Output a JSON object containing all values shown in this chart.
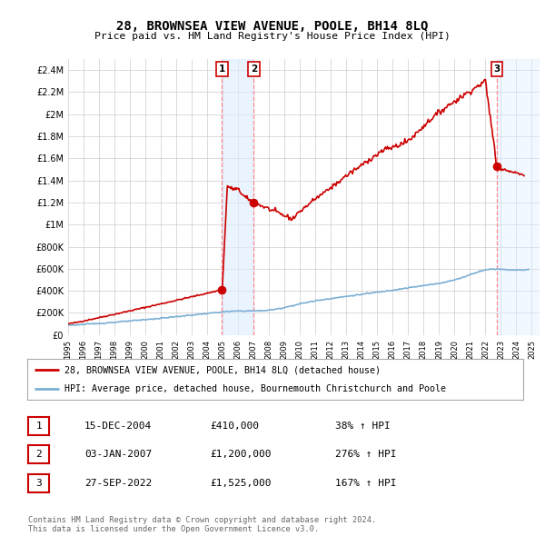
{
  "title": "28, BROWNSEA VIEW AVENUE, POOLE, BH14 8LQ",
  "subtitle": "Price paid vs. HM Land Registry's House Price Index (HPI)",
  "background_color": "#ffffff",
  "plot_bg_color": "#ffffff",
  "grid_color": "#cccccc",
  "ylim": [
    0,
    2500000
  ],
  "xlim_start": 1995.0,
  "xlim_end": 2025.5,
  "yticks": [
    0,
    200000,
    400000,
    600000,
    800000,
    1000000,
    1200000,
    1400000,
    1600000,
    1800000,
    2000000,
    2200000,
    2400000
  ],
  "ytick_labels": [
    "£0",
    "£200K",
    "£400K",
    "£600K",
    "£800K",
    "£1M",
    "£1.2M",
    "£1.4M",
    "£1.6M",
    "£1.8M",
    "£2M",
    "£2.2M",
    "£2.4M"
  ],
  "xticks": [
    1995,
    1996,
    1997,
    1998,
    1999,
    2000,
    2001,
    2002,
    2003,
    2004,
    2005,
    2006,
    2007,
    2008,
    2009,
    2010,
    2011,
    2012,
    2013,
    2014,
    2015,
    2016,
    2017,
    2018,
    2019,
    2020,
    2021,
    2022,
    2023,
    2024,
    2025
  ],
  "red_line_color": "#cc0000",
  "blue_line_color": "#7bafd4",
  "sale_color": "#cc0000",
  "vline_color": "#ff8888",
  "shade_color": "#ddeeff",
  "sales": [
    {
      "num": 1,
      "date_label": "15-DEC-2004",
      "price": 410000,
      "pct": "38%",
      "year": 2004.96
    },
    {
      "num": 2,
      "date_label": "03-JAN-2007",
      "price": 1200000,
      "pct": "276%",
      "year": 2007.01
    },
    {
      "num": 3,
      "date_label": "27-SEP-2022",
      "price": 1525000,
      "pct": "167%",
      "year": 2022.74
    }
  ],
  "legend_label_red": "28, BROWNSEA VIEW AVENUE, POOLE, BH14 8LQ (detached house)",
  "legend_label_blue": "HPI: Average price, detached house, Bournemouth Christchurch and Poole",
  "footer_line1": "Contains HM Land Registry data © Crown copyright and database right 2024.",
  "footer_line2": "This data is licensed under the Open Government Licence v3.0.",
  "table_rows": [
    {
      "num": 1,
      "date": "15-DEC-2004",
      "price": "£410,000",
      "pct": "38% ↑ HPI"
    },
    {
      "num": 2,
      "date": "03-JAN-2007",
      "price": "£1,200,000",
      "pct": "276% ↑ HPI"
    },
    {
      "num": 3,
      "date": "27-SEP-2022",
      "price": "£1,525,000",
      "pct": "167% ↑ HPI"
    }
  ]
}
